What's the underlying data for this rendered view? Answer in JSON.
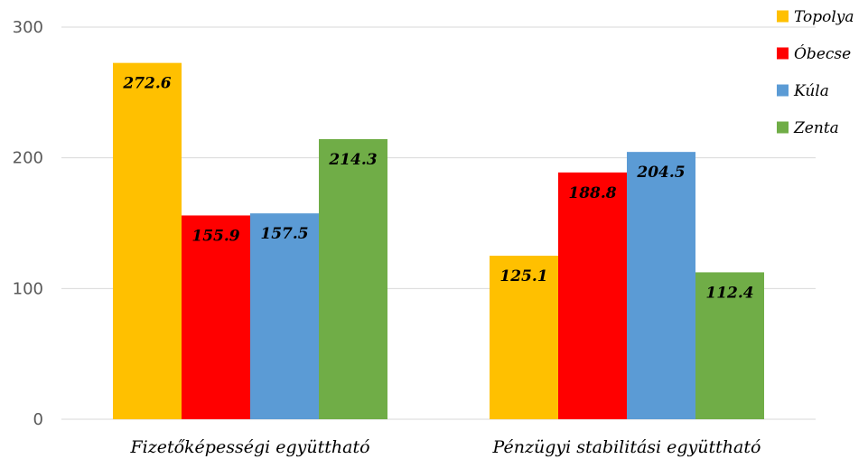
{
  "chart_data": {
    "type": "bar",
    "title": "",
    "xlabel": "",
    "ylabel": "",
    "categories": [
      "Fizetőképességi együttható",
      "Pénzügyi stabilitási együttható"
    ],
    "series": [
      {
        "name": "Topolya",
        "color": "#FFC000",
        "values": [
          272.6,
          125.1
        ]
      },
      {
        "name": "Óbecse",
        "color": "#FF0000",
        "values": [
          155.9,
          188.8
        ]
      },
      {
        "name": "Kúla",
        "color": "#5B9BD5",
        "values": [
          157.5,
          204.5
        ]
      },
      {
        "name": "Zenta",
        "color": "#70AD47",
        "values": [
          214.3,
          112.4
        ]
      }
    ],
    "ylim": [
      0,
      300
    ],
    "yticks": [
      0,
      100,
      200,
      300
    ],
    "grid": true,
    "legend": "top-right"
  }
}
